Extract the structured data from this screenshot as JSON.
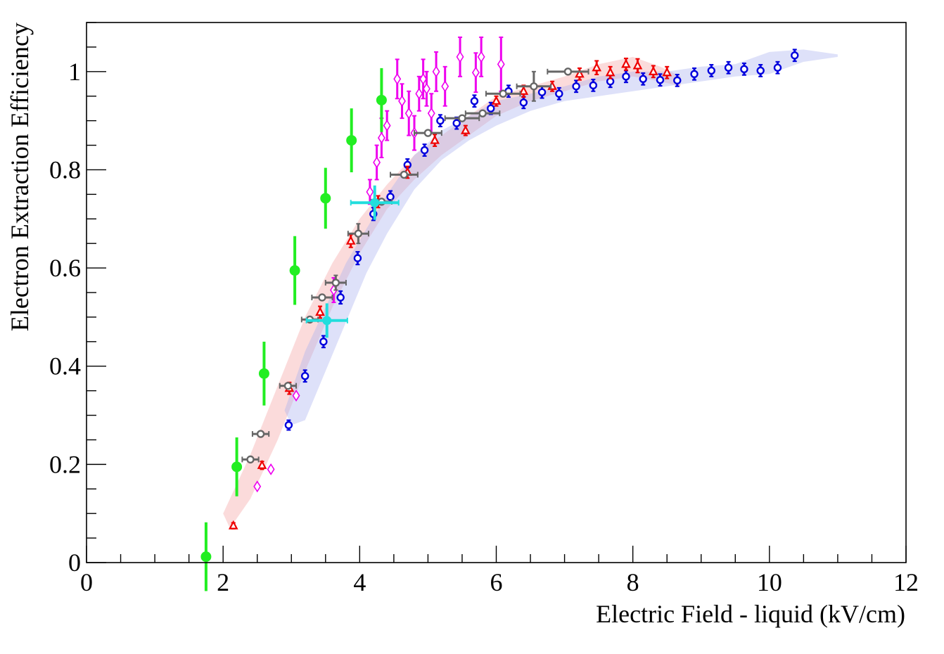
{
  "chart_data": {
    "type": "scatter",
    "title": "",
    "xlabel": "Electric Field - liquid (kV/cm)",
    "ylabel": "Electron Extraction Efficiency",
    "xlim": [
      0,
      12
    ],
    "ylim": [
      0,
      1.1
    ],
    "x_ticks": [
      0,
      2,
      4,
      6,
      8,
      10,
      12
    ],
    "y_ticks": [
      0,
      0.2,
      0.4,
      0.6,
      0.8,
      1
    ],
    "x_tick_labels": [
      "0",
      "2",
      "4",
      "6",
      "8",
      "10",
      "12"
    ],
    "y_tick_labels": [
      "0",
      "0.2",
      "0.4",
      "0.6",
      "0.8",
      "1"
    ],
    "grid": false,
    "bands": [
      {
        "color": "#f4a0a0",
        "upper": [
          [
            2.0,
            0.1
          ],
          [
            2.4,
            0.22
          ],
          [
            2.8,
            0.36
          ],
          [
            3.2,
            0.5
          ],
          [
            3.6,
            0.61
          ],
          [
            4.0,
            0.7
          ],
          [
            4.4,
            0.77
          ],
          [
            4.8,
            0.83
          ],
          [
            5.2,
            0.87
          ],
          [
            5.6,
            0.91
          ],
          [
            6.0,
            0.95
          ],
          [
            6.5,
            0.97
          ],
          [
            7.0,
            0.99
          ],
          [
            7.5,
            1.015
          ],
          [
            8.0,
            1.03
          ],
          [
            8.4,
            1.01
          ],
          [
            8.7,
            0.99
          ]
        ],
        "lower": [
          [
            8.7,
            0.97
          ],
          [
            8.4,
            0.98
          ],
          [
            8.0,
            0.99
          ],
          [
            7.5,
            0.98
          ],
          [
            7.0,
            0.96
          ],
          [
            6.5,
            0.94
          ],
          [
            6.0,
            0.91
          ],
          [
            5.6,
            0.87
          ],
          [
            5.2,
            0.83
          ],
          [
            4.8,
            0.78
          ],
          [
            4.4,
            0.72
          ],
          [
            4.0,
            0.63
          ],
          [
            3.6,
            0.52
          ],
          [
            3.2,
            0.39
          ],
          [
            2.8,
            0.25
          ],
          [
            2.4,
            0.13
          ],
          [
            2.1,
            0.07
          ]
        ]
      },
      {
        "color": "#a8b0ee",
        "upper": [
          [
            2.9,
            0.31
          ],
          [
            3.2,
            0.43
          ],
          [
            3.5,
            0.52
          ],
          [
            3.8,
            0.61
          ],
          [
            4.1,
            0.68
          ],
          [
            4.4,
            0.75
          ],
          [
            4.8,
            0.83
          ],
          [
            5.2,
            0.88
          ],
          [
            5.6,
            0.91
          ],
          [
            6.0,
            0.94
          ],
          [
            6.5,
            0.955
          ],
          [
            7.0,
            0.97
          ],
          [
            7.5,
            0.99
          ],
          [
            8.0,
            1.0
          ],
          [
            8.5,
            1.0
          ],
          [
            9.0,
            1.01
          ],
          [
            9.5,
            1.015
          ],
          [
            10.0,
            1.04
          ],
          [
            10.5,
            1.045
          ],
          [
            11.0,
            1.035
          ]
        ],
        "lower": [
          [
            11.0,
            1.03
          ],
          [
            10.5,
            1.02
          ],
          [
            10.0,
            0.995
          ],
          [
            9.5,
            0.99
          ],
          [
            9.0,
            0.98
          ],
          [
            8.5,
            0.97
          ],
          [
            8.0,
            0.96
          ],
          [
            7.5,
            0.95
          ],
          [
            7.0,
            0.94
          ],
          [
            6.5,
            0.92
          ],
          [
            6.0,
            0.89
          ],
          [
            5.6,
            0.86
          ],
          [
            5.2,
            0.82
          ],
          [
            4.8,
            0.76
          ],
          [
            4.4,
            0.67
          ],
          [
            4.1,
            0.59
          ],
          [
            3.8,
            0.49
          ],
          [
            3.5,
            0.39
          ],
          [
            3.2,
            0.29
          ],
          [
            3.0,
            0.28
          ]
        ]
      }
    ],
    "series": [
      {
        "marker": "open-circle",
        "color": "#0000dd",
        "points": [
          [
            2.96,
            0.28,
            0.01,
            0
          ],
          [
            3.2,
            0.38,
            0.012,
            0
          ],
          [
            3.47,
            0.45,
            0.012,
            0
          ],
          [
            3.72,
            0.54,
            0.013,
            0
          ],
          [
            3.97,
            0.62,
            0.013,
            0
          ],
          [
            4.2,
            0.71,
            0.013,
            0
          ],
          [
            4.45,
            0.745,
            0.012,
            0
          ],
          [
            4.7,
            0.81,
            0.012,
            0
          ],
          [
            4.95,
            0.84,
            0.012,
            0
          ],
          [
            5.18,
            0.9,
            0.012,
            0
          ],
          [
            5.42,
            0.895,
            0.012,
            0
          ],
          [
            5.68,
            0.94,
            0.012,
            0
          ],
          [
            5.92,
            0.925,
            0.012,
            0
          ],
          [
            6.18,
            0.96,
            0.012,
            0
          ],
          [
            6.4,
            0.937,
            0.012,
            0
          ],
          [
            6.67,
            0.958,
            0.012,
            0
          ],
          [
            6.92,
            0.955,
            0.012,
            0
          ],
          [
            7.17,
            0.97,
            0.012,
            0
          ],
          [
            7.42,
            0.972,
            0.012,
            0
          ],
          [
            7.67,
            0.98,
            0.012,
            0
          ],
          [
            7.9,
            0.99,
            0.012,
            0
          ],
          [
            8.15,
            0.985,
            0.012,
            0
          ],
          [
            8.4,
            0.983,
            0.012,
            0
          ],
          [
            8.65,
            0.982,
            0.012,
            0
          ],
          [
            8.9,
            0.995,
            0.012,
            0
          ],
          [
            9.15,
            1.002,
            0.012,
            0
          ],
          [
            9.4,
            1.008,
            0.012,
            0
          ],
          [
            9.63,
            1.005,
            0.012,
            0
          ],
          [
            9.87,
            1.002,
            0.012,
            0
          ],
          [
            10.12,
            1.008,
            0.012,
            0
          ],
          [
            10.37,
            1.033,
            0.012,
            0
          ]
        ]
      },
      {
        "marker": "open-triangle",
        "color": "#ee0000",
        "points": [
          [
            2.15,
            0.075,
            0.006,
            0
          ],
          [
            2.57,
            0.198,
            0.008,
            0
          ],
          [
            2.97,
            0.355,
            0.012,
            0
          ],
          [
            3.42,
            0.51,
            0.012,
            0
          ],
          [
            3.87,
            0.655,
            0.013,
            0
          ],
          [
            4.27,
            0.735,
            0.012,
            0
          ],
          [
            4.7,
            0.795,
            0.012,
            0
          ],
          [
            5.1,
            0.86,
            0.012,
            0
          ],
          [
            5.55,
            0.88,
            0.01,
            0
          ],
          [
            6.0,
            0.94,
            0.01,
            0
          ],
          [
            6.4,
            0.96,
            0.012,
            0
          ],
          [
            6.82,
            0.97,
            0.01,
            0
          ],
          [
            7.22,
            0.995,
            0.012,
            0
          ],
          [
            7.47,
            1.008,
            0.014,
            0
          ],
          [
            7.67,
            0.998,
            0.012,
            0
          ],
          [
            7.9,
            1.015,
            0.012,
            0
          ],
          [
            8.07,
            1.012,
            0.014,
            0
          ],
          [
            8.3,
            1.0,
            0.012,
            0
          ],
          [
            8.5,
            0.998,
            0.012,
            0
          ]
        ]
      },
      {
        "marker": "open-diamond",
        "color": "#ee00ee",
        "points": [
          [
            2.5,
            0.155,
            0,
            0
          ],
          [
            2.7,
            0.19,
            0,
            0
          ],
          [
            3.07,
            0.34,
            0,
            0
          ],
          [
            3.62,
            0.555,
            0.025,
            0
          ],
          [
            4.15,
            0.755,
            0.025,
            0
          ],
          [
            4.25,
            0.815,
            0.035,
            0
          ],
          [
            4.32,
            0.865,
            0.04,
            0
          ],
          [
            4.4,
            0.89,
            0.03,
            0
          ],
          [
            4.55,
            0.985,
            0.04,
            0
          ],
          [
            4.62,
            0.94,
            0.035,
            0
          ],
          [
            4.72,
            0.915,
            0.045,
            0
          ],
          [
            4.8,
            0.875,
            0.035,
            0
          ],
          [
            4.87,
            0.955,
            0.035,
            0
          ],
          [
            4.93,
            0.985,
            0.04,
            0
          ],
          [
            4.98,
            0.965,
            0.035,
            0
          ],
          [
            5.05,
            0.915,
            0.04,
            0
          ],
          [
            5.12,
            1.0,
            0.04,
            0
          ],
          [
            5.25,
            0.97,
            0.04,
            0
          ],
          [
            5.47,
            1.03,
            0.04,
            0
          ],
          [
            5.7,
            0.998,
            0.04,
            0
          ],
          [
            5.78,
            1.03,
            0.04,
            0
          ],
          [
            6.07,
            1.015,
            0.055,
            0
          ]
        ]
      },
      {
        "marker": "open-circle",
        "color": "#666666",
        "points": [
          [
            2.4,
            0.21,
            0,
            0.12
          ],
          [
            2.55,
            0.262,
            0,
            0.12
          ],
          [
            2.95,
            0.36,
            0,
            0.12
          ],
          [
            3.27,
            0.495,
            0,
            0.12
          ],
          [
            3.45,
            0.54,
            0,
            0.15
          ],
          [
            3.65,
            0.57,
            0.015,
            0.15
          ],
          [
            3.98,
            0.67,
            0.02,
            0.15
          ],
          [
            4.32,
            0.735,
            0,
            0.15
          ],
          [
            4.65,
            0.79,
            0,
            0.2
          ],
          [
            5.0,
            0.875,
            0,
            0.2
          ],
          [
            5.5,
            0.905,
            0,
            0.25
          ],
          [
            5.8,
            0.915,
            0,
            0.25
          ],
          [
            6.1,
            0.955,
            0,
            0.25
          ],
          [
            6.55,
            0.97,
            0.03,
            0.25
          ],
          [
            7.05,
            1.0,
            0,
            0.3
          ]
        ]
      },
      {
        "marker": "filled-circle",
        "color": "#22ee22",
        "points": [
          [
            1.75,
            0.012,
            0.07,
            0
          ],
          [
            2.2,
            0.195,
            0.06,
            0
          ],
          [
            2.6,
            0.385,
            0.065,
            0
          ],
          [
            3.05,
            0.595,
            0.07,
            0
          ],
          [
            3.5,
            0.742,
            0.062,
            0
          ],
          [
            3.88,
            0.86,
            0.065,
            0
          ],
          [
            4.32,
            0.942,
            0.065,
            0
          ]
        ]
      },
      {
        "marker": "filled-circle",
        "color": "#22dddd",
        "points": [
          [
            3.52,
            0.493,
            0.035,
            0.3
          ],
          [
            4.22,
            0.733,
            0.035,
            0.35
          ]
        ]
      }
    ]
  }
}
